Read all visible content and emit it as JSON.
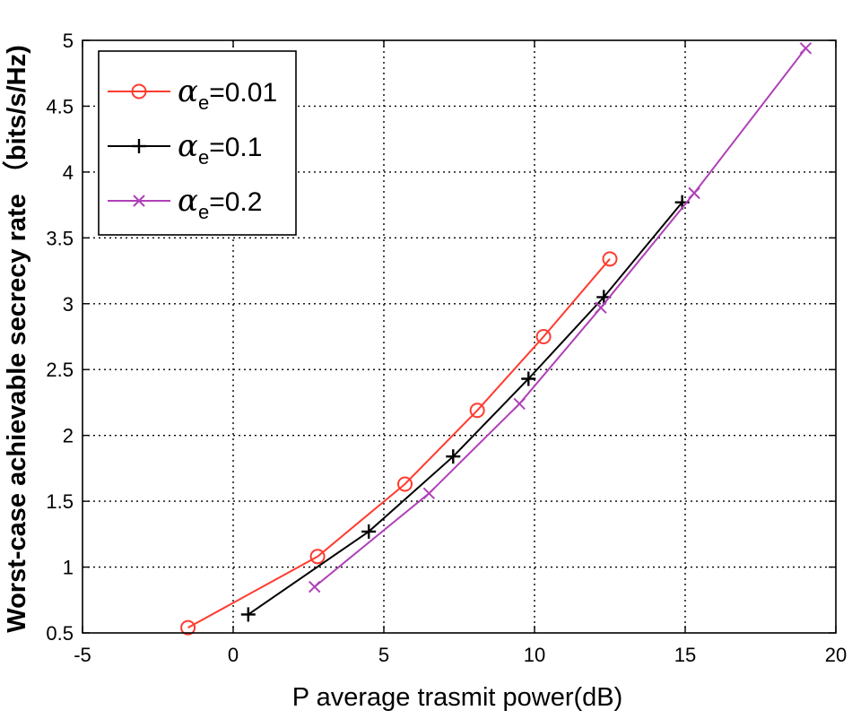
{
  "chart_data": {
    "type": "line",
    "title": "",
    "xlabel": "P average trasmit power(dB)",
    "ylabel": "Worst-case achievable secrecy rate （bits/s/Hz)",
    "xlim": [
      -5,
      20
    ],
    "ylim": [
      0.5,
      5
    ],
    "xticks": [
      -5,
      0,
      5,
      10,
      15,
      20
    ],
    "yticks": [
      0.5,
      1,
      1.5,
      2,
      2.5,
      3,
      3.5,
      4,
      4.5,
      5
    ],
    "xtick_labels": [
      "-5",
      "0",
      "5",
      "10",
      "15",
      "20"
    ],
    "ytick_labels": [
      "0.5",
      "1",
      "1.5",
      "2",
      "2.5",
      "3",
      "3.5",
      "4",
      "4.5",
      "5"
    ],
    "grid": true,
    "legend_position": "top-left",
    "series": [
      {
        "name": "αe=0.01",
        "symbol": "α",
        "subscript": "e",
        "value_text": "=0.01",
        "color": "#ff3b2f",
        "marker": "circle",
        "x": [
          -1.5,
          2.8,
          5.7,
          8.1,
          10.3,
          12.5
        ],
        "y": [
          0.54,
          1.08,
          1.63,
          2.19,
          2.75,
          3.34
        ]
      },
      {
        "name": "αe=0.1",
        "symbol": "α",
        "subscript": "e",
        "value_text": "=0.1",
        "color": "#000000",
        "marker": "plus",
        "x": [
          0.5,
          4.5,
          7.3,
          9.8,
          12.3,
          14.9
        ],
        "y": [
          0.64,
          1.27,
          1.84,
          2.43,
          3.05,
          3.77
        ]
      },
      {
        "name": "αe=0.2",
        "symbol": "α",
        "subscript": "e",
        "value_text": "=0.2",
        "color": "#b040b8",
        "marker": "x",
        "x": [
          2.7,
          6.5,
          9.5,
          12.2,
          15.3,
          19.0
        ],
        "y": [
          0.85,
          1.56,
          2.24,
          2.97,
          3.84,
          4.94
        ]
      }
    ]
  }
}
